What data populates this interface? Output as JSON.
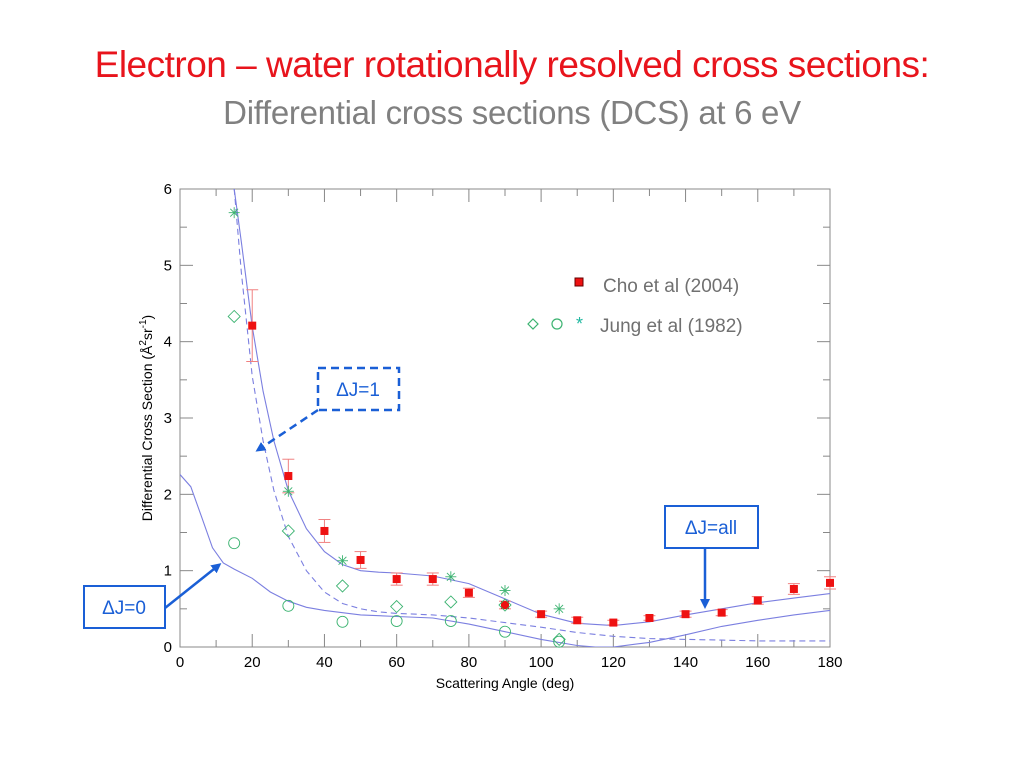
{
  "header": {
    "title": "Electron – water rotationally resolved cross sections:",
    "subtitle": "Differential cross sections (DCS) at 6 eV"
  },
  "colors": {
    "title": "#e8141c",
    "subtitle": "#808080",
    "cho": "#ee1111",
    "cho_error": "#f08080",
    "jung": "#3cb371",
    "theory_line": "#7b7fe0",
    "annotation": "#1a5fd6"
  },
  "chart_data": {
    "type": "scatter",
    "title": "",
    "xlabel": "Scattering Angle (deg)",
    "ylabel": "Differential Cross Section (Å²sr⁻¹)",
    "ylabel_parts": {
      "main": "Differential Cross Section (Å",
      "sup1": "2",
      "mid": "sr",
      "sup2": "-1",
      "end": ")"
    },
    "xlim": [
      0,
      180
    ],
    "ylim": [
      0,
      6
    ],
    "xticks": [
      0,
      20,
      40,
      60,
      80,
      100,
      120,
      140,
      160,
      180
    ],
    "yticks": [
      0,
      1,
      2,
      3,
      4,
      5,
      6
    ],
    "grid": false,
    "legend": [
      {
        "label": "Cho et al (2004)",
        "markers": [
          "filled-square"
        ]
      },
      {
        "label": "Jung et al (1982)",
        "markers": [
          "diamond",
          "circle",
          "asterisk"
        ]
      }
    ],
    "legend_position": "top-right",
    "series": [
      {
        "name": "Cho et al (2004)",
        "marker": "filled-square",
        "x": [
          20,
          30,
          40,
          50,
          60,
          70,
          80,
          90,
          100,
          110,
          120,
          130,
          140,
          150,
          160,
          170,
          180
        ],
        "y": [
          4.21,
          2.24,
          1.52,
          1.14,
          0.89,
          0.89,
          0.71,
          0.55,
          0.43,
          0.35,
          0.32,
          0.38,
          0.43,
          0.45,
          0.61,
          0.76,
          0.84
        ],
        "err": [
          0.47,
          0.22,
          0.15,
          0.11,
          0.08,
          0.08,
          0.06,
          0.05,
          0.04,
          0.04,
          0.03,
          0.03,
          0.04,
          0.04,
          0.05,
          0.07,
          0.08
        ]
      },
      {
        "name": "Jung et al (1982) diamond",
        "marker": "diamond",
        "x": [
          15,
          30,
          45,
          60,
          75,
          90,
          105
        ],
        "y": [
          4.33,
          1.52,
          0.8,
          0.53,
          0.59,
          0.55,
          0.1
        ]
      },
      {
        "name": "Jung et al (1982) circle",
        "marker": "circle",
        "x": [
          15,
          30,
          45,
          60,
          75,
          90,
          105
        ],
        "y": [
          1.36,
          0.54,
          0.33,
          0.34,
          0.34,
          0.2,
          0.07
        ]
      },
      {
        "name": "Jung et al (1982) asterisk",
        "marker": "asterisk",
        "x": [
          15,
          30,
          45,
          75,
          90,
          105
        ],
        "y": [
          5.69,
          2.04,
          1.13,
          0.92,
          0.74,
          0.5
        ]
      },
      {
        "name": "Theory ΔJ=all",
        "style": "solid",
        "x": [
          15,
          17,
          20,
          23,
          26,
          30,
          35,
          40,
          45,
          50,
          55,
          60,
          70,
          80,
          90,
          100,
          110,
          120,
          130,
          140,
          150,
          160,
          170,
          180
        ],
        "y": [
          6.0,
          5.3,
          4.2,
          3.35,
          2.7,
          2.05,
          1.55,
          1.25,
          1.08,
          1.0,
          0.98,
          0.97,
          0.93,
          0.83,
          0.63,
          0.43,
          0.31,
          0.28,
          0.33,
          0.42,
          0.5,
          0.58,
          0.64,
          0.7
        ]
      },
      {
        "name": "Theory ΔJ=1",
        "style": "dashed",
        "x": [
          15,
          17,
          20,
          23,
          26,
          30,
          35,
          40,
          45,
          50,
          55,
          60,
          70,
          80,
          90,
          100,
          110,
          120,
          130,
          140,
          150,
          160,
          170,
          180
        ],
        "y": [
          6.0,
          4.9,
          3.55,
          2.7,
          2.05,
          1.45,
          1.0,
          0.72,
          0.57,
          0.5,
          0.46,
          0.44,
          0.42,
          0.38,
          0.32,
          0.26,
          0.19,
          0.14,
          0.11,
          0.1,
          0.09,
          0.08,
          0.08,
          0.08
        ]
      },
      {
        "name": "Theory ΔJ=0",
        "style": "solid",
        "x": [
          0,
          3,
          6,
          9,
          12,
          15,
          20,
          25,
          30,
          35,
          40,
          50,
          60,
          70,
          80,
          90,
          100,
          110,
          115,
          120,
          130,
          140,
          150,
          160,
          170,
          180
        ],
        "y": [
          2.26,
          2.1,
          1.7,
          1.3,
          1.1,
          1.02,
          0.9,
          0.72,
          0.6,
          0.52,
          0.48,
          0.42,
          0.4,
          0.38,
          0.3,
          0.2,
          0.1,
          0.02,
          0.0,
          0.0,
          0.06,
          0.16,
          0.27,
          0.35,
          0.42,
          0.48
        ]
      }
    ],
    "annotations": [
      {
        "text": "ΔJ=1",
        "points_to": {
          "x": 21,
          "y": 2.6
        },
        "box_style": "dashed"
      },
      {
        "text": "ΔJ=0",
        "points_to": {
          "x": 12,
          "y": 1.12
        },
        "box_style": "solid"
      },
      {
        "text": "ΔJ=all",
        "points_to": {
          "x": 145,
          "y": 0.47
        },
        "box_style": "solid"
      }
    ]
  }
}
